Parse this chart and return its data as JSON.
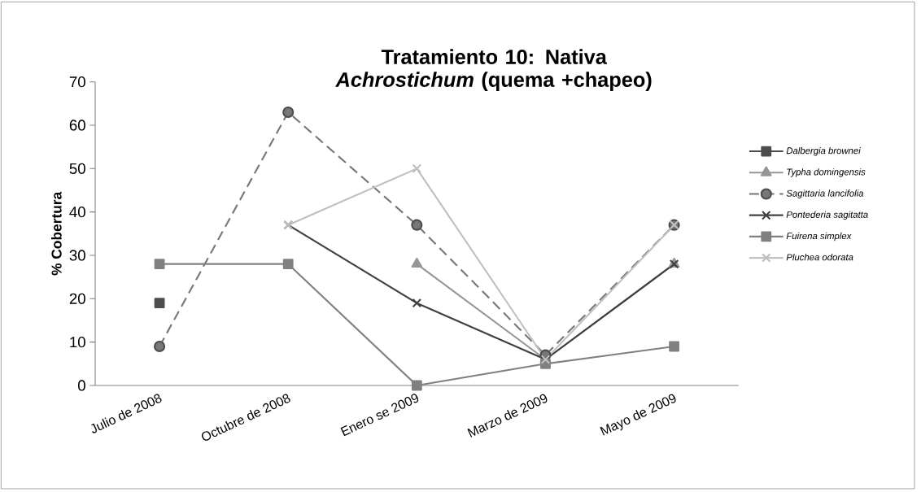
{
  "chart_data": {
    "type": "line",
    "title": "Tratamiento 10: Nativa *Achrostichum* (quema +chapeo)",
    "ylabel": "% Cobertura",
    "categories": [
      "Julio de 2008",
      "Octubre de 2008",
      "Enero se 2009",
      "Marzo de 2009",
      "Mayo de 2009"
    ],
    "ylim": [
      0,
      70
    ],
    "yticks": [
      0,
      10,
      20,
      30,
      40,
      50,
      60,
      70
    ],
    "grid": false,
    "legend": "right",
    "series": [
      {
        "name": "Dalbergia brownei",
        "color": "#4d4d4d",
        "marker": "square",
        "line_style": "solid",
        "values": [
          19,
          null,
          null,
          null,
          null
        ]
      },
      {
        "name": "Typha domingensis",
        "color": "#969696",
        "marker": "triangle",
        "line_style": "solid",
        "values": [
          null,
          null,
          28,
          6,
          28
        ]
      },
      {
        "name": "Sagittaria lancifolia",
        "color": "#777777",
        "marker": "circle",
        "line_style": "dashed",
        "values": [
          9,
          63,
          37,
          7,
          37
        ]
      },
      {
        "name": "Pontederia sagitatta",
        "color": "#404040",
        "marker": "cross",
        "line_style": "solid",
        "values": [
          null,
          37,
          19,
          6,
          28
        ]
      },
      {
        "name": "Fuirena simplex",
        "color": "#808080",
        "marker": "square",
        "line_style": "solid",
        "values": [
          28,
          28,
          0,
          5,
          9
        ]
      },
      {
        "name": "Pluchea odorata",
        "color": "#c0c0c0",
        "marker": "cross",
        "line_style": "solid",
        "values": [
          null,
          37,
          50,
          6,
          37
        ]
      }
    ]
  }
}
